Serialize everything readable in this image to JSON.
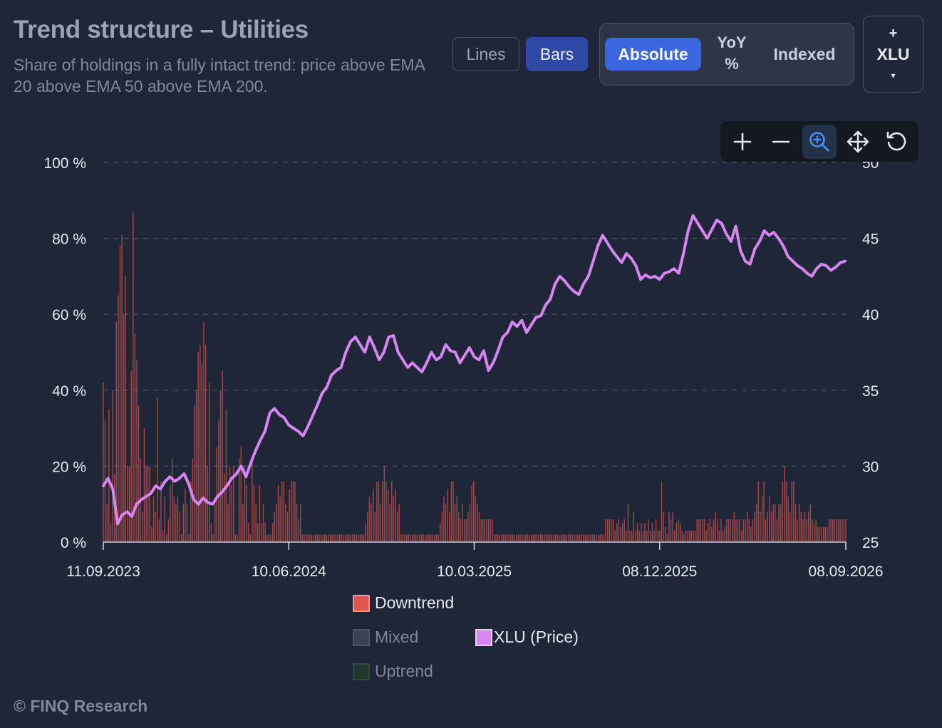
{
  "header": {
    "title": "Trend structure – Utilities",
    "subtitle": "Share of holdings in a fully intact trend: price above EMA 20 above EMA 50 above EMA 200."
  },
  "controls": {
    "chart_types": {
      "lines_label": "Lines",
      "bars_label": "Bars",
      "selected": "Bars"
    },
    "modes": {
      "absolute_label": "Absolute",
      "yoy_label": "YoY\n%",
      "indexed_label": "Indexed",
      "selected": "Absolute"
    },
    "compare": {
      "plus": "+",
      "label": "XLU",
      "caret": "▾"
    },
    "zoom_tools": [
      {
        "icon": "plus-icon",
        "active": false
      },
      {
        "icon": "minus-icon",
        "active": false
      },
      {
        "icon": "zoom-select-icon",
        "active": true
      },
      {
        "icon": "pan-move-icon",
        "active": false
      },
      {
        "icon": "reset-icon",
        "active": false
      }
    ]
  },
  "legend": [
    {
      "label": "Downtrend",
      "color": "#e0564f"
    },
    {
      "label": "Mixed",
      "color": "#3a4252"
    },
    {
      "label": "Uptrend",
      "color": "#22382f"
    },
    {
      "label": "XLU (Price)",
      "color": "#d785f0"
    }
  ],
  "footer": "© FINQ Research",
  "colors": {
    "bars": "#e0564f",
    "price_line": "#d785f0",
    "grid": "#4a5264"
  },
  "chart_data": {
    "type": "bar",
    "x_tick_labels": [
      "11.09.2023",
      "10.06.2024",
      "10.03.2025",
      "08.12.2025",
      "08.09.2026"
    ],
    "y_left": {
      "ticks": [
        "0 %",
        "20 %",
        "40 %",
        "60 %",
        "80 %",
        "100 %"
      ],
      "range": [
        0,
        100
      ]
    },
    "y_right": {
      "ticks": [
        "25",
        "30",
        "35",
        "40",
        "45",
        "50"
      ],
      "range": [
        25,
        50
      ]
    },
    "grid": "horizontal dashed",
    "legend_position": "bottom",
    "series": [
      {
        "name": "Downtrend",
        "kind": "bar",
        "axis": "left",
        "unit": "%",
        "start_date": "2023-09-11",
        "values": [
          42,
          32,
          10,
          35,
          5,
          40,
          18,
          58,
          65,
          78,
          81,
          60,
          70,
          20,
          20,
          45,
          87,
          55,
          48,
          36,
          22,
          8,
          30,
          20,
          20,
          20,
          4,
          12,
          8,
          38,
          6,
          16,
          3,
          12,
          2,
          6,
          15,
          22,
          12,
          10,
          12,
          8,
          2,
          10,
          14,
          10,
          2,
          16,
          22,
          36,
          40,
          50,
          52,
          47,
          58,
          52,
          20,
          42,
          5,
          2,
          10,
          25,
          32,
          40,
          45,
          18,
          35,
          10,
          20,
          15,
          20,
          2,
          2,
          22,
          25,
          10,
          20,
          15,
          5,
          2,
          22,
          15,
          10,
          5,
          15,
          5,
          10,
          5,
          2,
          2,
          2,
          5,
          8,
          10,
          15,
          12,
          16,
          16,
          10,
          8,
          14,
          16,
          16,
          16,
          10,
          6,
          10,
          2,
          2,
          2,
          2,
          2,
          2,
          2,
          2,
          2,
          2,
          2,
          2,
          2,
          2,
          2,
          2,
          2,
          2,
          2,
          2,
          2,
          2,
          2,
          2,
          2,
          2,
          2,
          2,
          2,
          2,
          2,
          2,
          2,
          2,
          5,
          8,
          12,
          10,
          14,
          8,
          16,
          16,
          10,
          16,
          20,
          16,
          14,
          10,
          16,
          12,
          14,
          8,
          10,
          2,
          2,
          2,
          2,
          2,
          2,
          2,
          2,
          2,
          2,
          2,
          2,
          2,
          2,
          2,
          2,
          2,
          2,
          2,
          2,
          2,
          5,
          8,
          12,
          10,
          14,
          8,
          16,
          16,
          10,
          12,
          8,
          6,
          10,
          6,
          6,
          8,
          10,
          15,
          16,
          12,
          10,
          8,
          6,
          6,
          6,
          6,
          6,
          6,
          6,
          2,
          2,
          2,
          2,
          2,
          2,
          2,
          2,
          2,
          2,
          2,
          2,
          2,
          2,
          2,
          2,
          2,
          2,
          2,
          2,
          2,
          2,
          2,
          2,
          2,
          2,
          2,
          2,
          2,
          2,
          2,
          2,
          2,
          2,
          2,
          2,
          2,
          2,
          2,
          2,
          2,
          2,
          2,
          2,
          2,
          2,
          2,
          2,
          2,
          2,
          2,
          2,
          2,
          2,
          2,
          2,
          2,
          2,
          2,
          2,
          6,
          6,
          6,
          6,
          6,
          3,
          5,
          6,
          4,
          5,
          6,
          3,
          10,
          3,
          3,
          8,
          3,
          5,
          3,
          5,
          3,
          5,
          3,
          6,
          3,
          5,
          3,
          6,
          3,
          3,
          16,
          8,
          4,
          2,
          8,
          6,
          8,
          3,
          5,
          6,
          5,
          3,
          2,
          3,
          3,
          3,
          3,
          3,
          3,
          6,
          6,
          6,
          6,
          6,
          3,
          5,
          6,
          4,
          6,
          8,
          6,
          3,
          6,
          3,
          4,
          6,
          6,
          6,
          6,
          8,
          6,
          6,
          6,
          3,
          6,
          6,
          8,
          6,
          4,
          6,
          8,
          10,
          16,
          8,
          12,
          16,
          6,
          8,
          12,
          8,
          10,
          10,
          6,
          10,
          10,
          16,
          20,
          16,
          12,
          8,
          16,
          16,
          10,
          6,
          10,
          8,
          6,
          8,
          6,
          8,
          10,
          6,
          5,
          6,
          4,
          4,
          4,
          4,
          4,
          4,
          6,
          6,
          6,
          6,
          6,
          6,
          6,
          6,
          6,
          6
        ]
      },
      {
        "name": "XLU (Price)",
        "kind": "line",
        "axis": "right",
        "points": [
          [
            "2023-09-11",
            28.7
          ],
          [
            "2023-09-18",
            29.2
          ],
          [
            "2023-09-25",
            28.5
          ],
          [
            "2023-10-02",
            26.2
          ],
          [
            "2023-10-09",
            26.8
          ],
          [
            "2023-10-16",
            27.0
          ],
          [
            "2023-10-23",
            26.7
          ],
          [
            "2023-10-30",
            27.5
          ],
          [
            "2023-11-06",
            27.8
          ],
          [
            "2023-11-13",
            28.0
          ],
          [
            "2023-11-20",
            28.2
          ],
          [
            "2023-11-27",
            28.7
          ],
          [
            "2023-12-04",
            28.5
          ],
          [
            "2023-12-11",
            29.0
          ],
          [
            "2023-12-18",
            29.3
          ],
          [
            "2023-12-25",
            29.0
          ],
          [
            "2024-01-01",
            29.2
          ],
          [
            "2024-01-08",
            29.5
          ],
          [
            "2024-01-15",
            28.8
          ],
          [
            "2024-01-22",
            27.8
          ],
          [
            "2024-01-29",
            27.5
          ],
          [
            "2024-02-05",
            27.9
          ],
          [
            "2024-02-12",
            27.6
          ],
          [
            "2024-02-19",
            27.5
          ],
          [
            "2024-02-26",
            28.0
          ],
          [
            "2024-03-04",
            28.3
          ],
          [
            "2024-03-11",
            28.7
          ],
          [
            "2024-03-18",
            29.2
          ],
          [
            "2024-03-25",
            29.5
          ],
          [
            "2024-04-01",
            30.0
          ],
          [
            "2024-04-08",
            29.3
          ],
          [
            "2024-04-15",
            30.2
          ],
          [
            "2024-04-22",
            31.0
          ],
          [
            "2024-04-29",
            31.7
          ],
          [
            "2024-05-06",
            32.3
          ],
          [
            "2024-05-13",
            33.5
          ],
          [
            "2024-05-20",
            33.8
          ],
          [
            "2024-05-27",
            33.4
          ],
          [
            "2024-06-03",
            33.2
          ],
          [
            "2024-06-10",
            32.7
          ],
          [
            "2024-06-17",
            32.5
          ],
          [
            "2024-06-24",
            32.3
          ],
          [
            "2024-07-01",
            32.0
          ],
          [
            "2024-07-08",
            32.6
          ],
          [
            "2024-07-15",
            33.3
          ],
          [
            "2024-07-22",
            34.0
          ],
          [
            "2024-07-29",
            34.8
          ],
          [
            "2024-08-05",
            35.2
          ],
          [
            "2024-08-12",
            36.0
          ],
          [
            "2024-08-19",
            36.3
          ],
          [
            "2024-08-26",
            36.5
          ],
          [
            "2024-09-02",
            37.5
          ],
          [
            "2024-09-09",
            38.2
          ],
          [
            "2024-09-16",
            38.5
          ],
          [
            "2024-09-23",
            38.0
          ],
          [
            "2024-09-30",
            37.5
          ],
          [
            "2024-10-07",
            38.5
          ],
          [
            "2024-10-14",
            37.8
          ],
          [
            "2024-10-21",
            37.0
          ],
          [
            "2024-10-28",
            37.5
          ],
          [
            "2024-11-04",
            38.5
          ],
          [
            "2024-11-11",
            38.6
          ],
          [
            "2024-11-18",
            37.5
          ],
          [
            "2024-11-25",
            37.0
          ],
          [
            "2024-12-02",
            36.5
          ],
          [
            "2024-12-09",
            36.8
          ],
          [
            "2024-12-16",
            36.5
          ],
          [
            "2024-12-23",
            36.2
          ],
          [
            "2024-12-30",
            36.8
          ],
          [
            "2025-01-06",
            37.5
          ],
          [
            "2025-01-13",
            37.0
          ],
          [
            "2025-01-20",
            37.2
          ],
          [
            "2025-01-27",
            38.0
          ],
          [
            "2025-02-03",
            37.6
          ],
          [
            "2025-02-10",
            37.5
          ],
          [
            "2025-02-17",
            36.8
          ],
          [
            "2025-02-24",
            37.3
          ],
          [
            "2025-03-03",
            37.8
          ],
          [
            "2025-03-10",
            37.2
          ],
          [
            "2025-03-17",
            37.0
          ],
          [
            "2025-03-24",
            37.6
          ],
          [
            "2025-03-31",
            36.3
          ],
          [
            "2025-04-07",
            36.8
          ],
          [
            "2025-04-14",
            37.6
          ],
          [
            "2025-04-21",
            38.5
          ],
          [
            "2025-04-28",
            38.8
          ],
          [
            "2025-05-05",
            39.5
          ],
          [
            "2025-05-12",
            39.2
          ],
          [
            "2025-05-19",
            39.6
          ],
          [
            "2025-05-26",
            38.8
          ],
          [
            "2025-06-02",
            39.3
          ],
          [
            "2025-06-09",
            39.8
          ],
          [
            "2025-06-16",
            39.9
          ],
          [
            "2025-06-23",
            40.6
          ],
          [
            "2025-06-30",
            41.0
          ],
          [
            "2025-07-07",
            42.0
          ],
          [
            "2025-07-14",
            42.5
          ],
          [
            "2025-07-21",
            42.2
          ],
          [
            "2025-07-28",
            41.8
          ],
          [
            "2025-08-04",
            41.5
          ],
          [
            "2025-08-11",
            41.3
          ],
          [
            "2025-08-18",
            42.0
          ],
          [
            "2025-08-25",
            42.5
          ],
          [
            "2025-09-01",
            43.5
          ],
          [
            "2025-09-08",
            44.5
          ],
          [
            "2025-09-15",
            45.2
          ],
          [
            "2025-09-22",
            44.7
          ],
          [
            "2025-09-29",
            44.2
          ],
          [
            "2025-10-06",
            43.8
          ],
          [
            "2025-10-13",
            43.4
          ],
          [
            "2025-10-20",
            44.0
          ],
          [
            "2025-10-27",
            43.7
          ],
          [
            "2025-11-03",
            43.2
          ],
          [
            "2025-11-10",
            42.3
          ],
          [
            "2025-11-17",
            42.6
          ],
          [
            "2025-11-24",
            42.4
          ],
          [
            "2025-12-01",
            42.5
          ],
          [
            "2025-12-08",
            42.3
          ],
          [
            "2025-12-15",
            42.7
          ],
          [
            "2025-12-22",
            42.8
          ],
          [
            "2025-12-29",
            43.0
          ],
          [
            "2026-01-05",
            42.7
          ],
          [
            "2026-01-12",
            44.0
          ],
          [
            "2026-01-19",
            45.5
          ],
          [
            "2026-01-26",
            46.5
          ],
          [
            "2026-02-02",
            46.0
          ],
          [
            "2026-02-09",
            45.5
          ],
          [
            "2026-02-16",
            45.0
          ],
          [
            "2026-02-23",
            45.6
          ],
          [
            "2026-03-02",
            46.2
          ],
          [
            "2026-03-09",
            46.0
          ],
          [
            "2026-03-16",
            45.3
          ],
          [
            "2026-03-23",
            44.8
          ],
          [
            "2026-03-30",
            45.8
          ],
          [
            "2026-04-06",
            44.2
          ],
          [
            "2026-04-13",
            43.5
          ],
          [
            "2026-04-20",
            43.3
          ],
          [
            "2026-04-27",
            44.3
          ],
          [
            "2026-05-04",
            44.8
          ],
          [
            "2026-05-11",
            45.5
          ],
          [
            "2026-05-18",
            45.2
          ],
          [
            "2026-05-25",
            45.4
          ],
          [
            "2026-06-01",
            45.0
          ],
          [
            "2026-06-08",
            44.5
          ],
          [
            "2026-06-15",
            43.8
          ],
          [
            "2026-06-22",
            43.5
          ],
          [
            "2026-06-29",
            43.2
          ],
          [
            "2026-07-06",
            43.0
          ],
          [
            "2026-07-13",
            42.7
          ],
          [
            "2026-07-20",
            42.5
          ],
          [
            "2026-07-27",
            43.0
          ],
          [
            "2026-08-03",
            43.3
          ],
          [
            "2026-08-10",
            43.2
          ],
          [
            "2026-08-17",
            42.9
          ],
          [
            "2026-08-24",
            43.1
          ],
          [
            "2026-08-31",
            43.4
          ],
          [
            "2026-09-07",
            43.5
          ]
        ]
      }
    ]
  }
}
